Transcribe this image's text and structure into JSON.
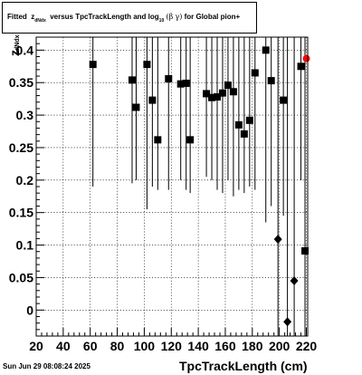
{
  "title": {
    "prefix": "Fitted",
    "z": "z",
    "z_sub": "dNdx",
    "middle": "versus TpcTrackLength and log",
    "log_sub": "10",
    "open": "(",
    "beta": "β",
    "gamma": "γ",
    "close": ")",
    "suffix": "for Global pion+"
  },
  "footer": {
    "timestamp": "Sun Jun 29 08:08:24 2025"
  },
  "axes": {
    "xlabel": "TpcTrackLength (cm)",
    "ylabel_main": "z",
    "ylabel_sub": "dNdx"
  },
  "colors": {
    "marker": "#000000",
    "highlight": "#ff0000",
    "grid": "#000000"
  },
  "chart_data": {
    "type": "scatter",
    "title": "Fitted z_dNdx versus TpcTrackLength and log10(βγ) for Global pion+",
    "xlabel": "TpcTrackLength (cm)",
    "ylabel": "z_dNdx",
    "xlim": [
      20,
      221
    ],
    "ylim": [
      -0.04,
      0.42
    ],
    "xticks": [
      20,
      40,
      60,
      80,
      100,
      120,
      140,
      160,
      180,
      200,
      220
    ],
    "yticks": [
      0,
      0.05,
      0.1,
      0.15,
      0.2,
      0.25,
      0.3,
      0.35,
      0.4
    ],
    "ytick_labels": [
      "0",
      "0.05",
      "0.1",
      "0.15",
      "0.2",
      "0.25",
      "0.3",
      "0.35",
      "0.4"
    ],
    "grid": true,
    "series": [
      {
        "marker": "square",
        "color": "#000000",
        "points": [
          {
            "x": 62,
            "y": 0.378,
            "ylo": 0.19,
            "yhi": 0.42
          },
          {
            "x": 91,
            "y": 0.354,
            "ylo": 0.195,
            "yhi": 0.42
          },
          {
            "x": 94,
            "y": 0.312,
            "ylo": 0.2,
            "yhi": 0.42
          },
          {
            "x": 102,
            "y": 0.378,
            "ylo": 0.155,
            "yhi": 0.42
          },
          {
            "x": 106,
            "y": 0.323,
            "ylo": 0.19,
            "yhi": 0.42
          },
          {
            "x": 110,
            "y": 0.262,
            "ylo": 0.185,
            "yhi": 0.42
          },
          {
            "x": 118,
            "y": 0.356,
            "ylo": 0.185,
            "yhi": 0.42
          },
          {
            "x": 127,
            "y": 0.348,
            "ylo": 0.2,
            "yhi": 0.42
          },
          {
            "x": 131,
            "y": 0.349,
            "ylo": 0.185,
            "yhi": 0.42
          },
          {
            "x": 134,
            "y": 0.262,
            "ylo": 0.18,
            "yhi": 0.42
          },
          {
            "x": 146,
            "y": 0.333,
            "ylo": 0.205,
            "yhi": 0.42
          },
          {
            "x": 150,
            "y": 0.327,
            "ylo": 0.2,
            "yhi": 0.42
          },
          {
            "x": 154,
            "y": 0.328,
            "ylo": 0.185,
            "yhi": 0.42
          },
          {
            "x": 158,
            "y": 0.334,
            "ylo": 0.18,
            "yhi": 0.42
          },
          {
            "x": 162,
            "y": 0.346,
            "ylo": 0.2,
            "yhi": 0.42
          },
          {
            "x": 166,
            "y": 0.336,
            "ylo": 0.175,
            "yhi": 0.42
          },
          {
            "x": 170,
            "y": 0.285,
            "ylo": 0.185,
            "yhi": 0.42
          },
          {
            "x": 174,
            "y": 0.271,
            "ylo": 0.18,
            "yhi": 0.42
          },
          {
            "x": 178,
            "y": 0.292,
            "ylo": 0.19,
            "yhi": 0.42
          },
          {
            "x": 182,
            "y": 0.365,
            "ylo": 0.185,
            "yhi": 0.42
          },
          {
            "x": 190,
            "y": 0.4,
            "ylo": 0.135,
            "yhi": 0.42
          },
          {
            "x": 194,
            "y": 0.353,
            "ylo": 0.16,
            "yhi": 0.42
          },
          {
            "x": 203,
            "y": 0.323,
            "ylo": 0.145,
            "yhi": 0.42
          },
          {
            "x": 216,
            "y": 0.375,
            "ylo": 0.2,
            "yhi": 0.42
          },
          {
            "x": 219,
            "y": 0.091,
            "ylo": -0.04,
            "yhi": 0.42
          }
        ]
      },
      {
        "marker": "diamond",
        "color": "#000000",
        "points": [
          {
            "x": 199,
            "y": 0.109,
            "ylo": -0.04,
            "yhi": 0.42
          },
          {
            "x": 206,
            "y": -0.018,
            "ylo": -0.04,
            "yhi": 0.42
          },
          {
            "x": 211,
            "y": 0.045,
            "ylo": -0.04,
            "yhi": 0.42
          }
        ]
      },
      {
        "marker": "circle",
        "color": "#ff0000",
        "points": [
          {
            "x": 220,
            "y": 0.387
          }
        ]
      }
    ]
  }
}
